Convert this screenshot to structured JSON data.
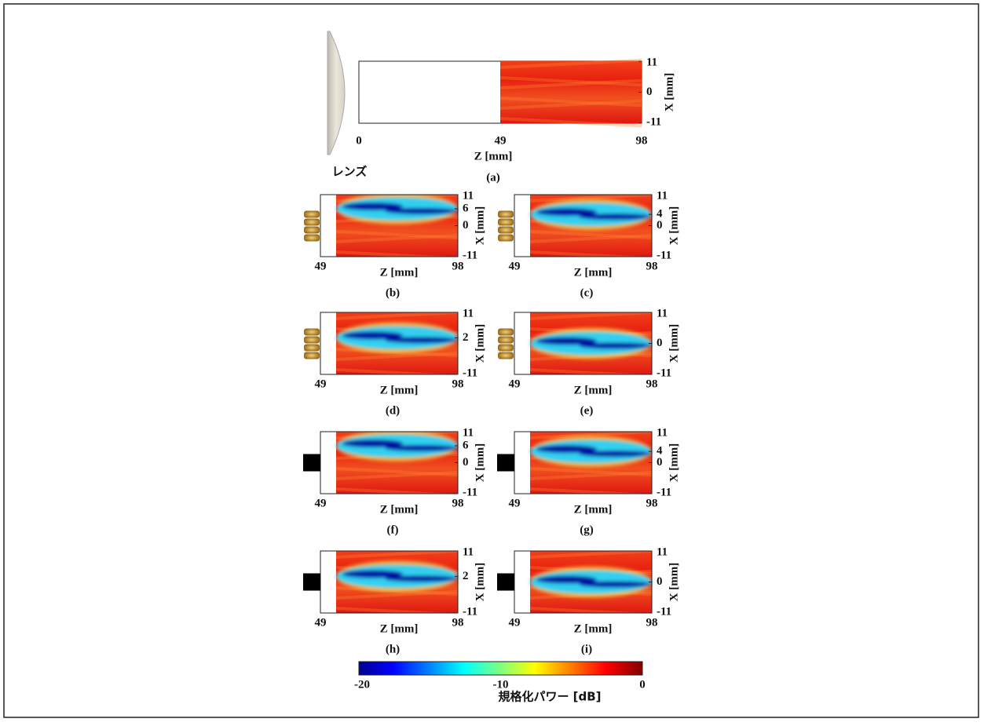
{
  "lens_label": "レンズ",
  "panels": [
    {
      "label": "(a)",
      "x_ticks": [
        "0",
        "49",
        "98"
      ],
      "y_ticks": [
        "11",
        "0",
        "-11"
      ],
      "x_axis": "Z [mm]",
      "y_axis": "X [mm]"
    },
    {
      "label": "(b)",
      "x_ticks": [
        "49",
        "98"
      ],
      "y_ticks": [
        "11",
        "6",
        "0",
        "-11"
      ],
      "x_axis": "Z [mm]",
      "y_axis": "X [mm]"
    },
    {
      "label": "(c)",
      "x_ticks": [
        "49",
        "98"
      ],
      "y_ticks": [
        "11",
        "4",
        "0",
        "-11"
      ],
      "x_axis": "Z [mm]",
      "y_axis": "X [mm]"
    },
    {
      "label": "(d)",
      "x_ticks": [
        "49",
        "98"
      ],
      "y_ticks": [
        "11",
        "2",
        "-11"
      ],
      "x_axis": "Z [mm]",
      "y_axis": "X [mm]"
    },
    {
      "label": "(e)",
      "x_ticks": [
        "49",
        "98"
      ],
      "y_ticks": [
        "11",
        "0",
        "-11"
      ],
      "x_axis": "Z [mm]",
      "y_axis": "X [mm]"
    },
    {
      "label": "(f)",
      "x_ticks": [
        "49",
        "98"
      ],
      "y_ticks": [
        "11",
        "6",
        "0",
        "-11"
      ],
      "x_axis": "Z [mm]",
      "y_axis": "X [mm]"
    },
    {
      "label": "(g)",
      "x_ticks": [
        "49",
        "98"
      ],
      "y_ticks": [
        "11",
        "4",
        "0",
        "-11"
      ],
      "x_axis": "Z [mm]",
      "y_axis": "X [mm]"
    },
    {
      "label": "(h)",
      "x_ticks": [
        "49",
        "98"
      ],
      "y_ticks": [
        "11",
        "2",
        "-11"
      ],
      "x_axis": "Z [mm]",
      "y_axis": "X [mm]"
    },
    {
      "label": "(i)",
      "x_ticks": [
        "49",
        "98"
      ],
      "y_ticks": [
        "11",
        "0",
        "-11"
      ],
      "x_axis": "Z [mm]",
      "y_axis": "X [mm]"
    }
  ],
  "colorbar": {
    "ticks": [
      "-20",
      "-10",
      "0"
    ],
    "label": "規格化パワー [dB]"
  }
}
